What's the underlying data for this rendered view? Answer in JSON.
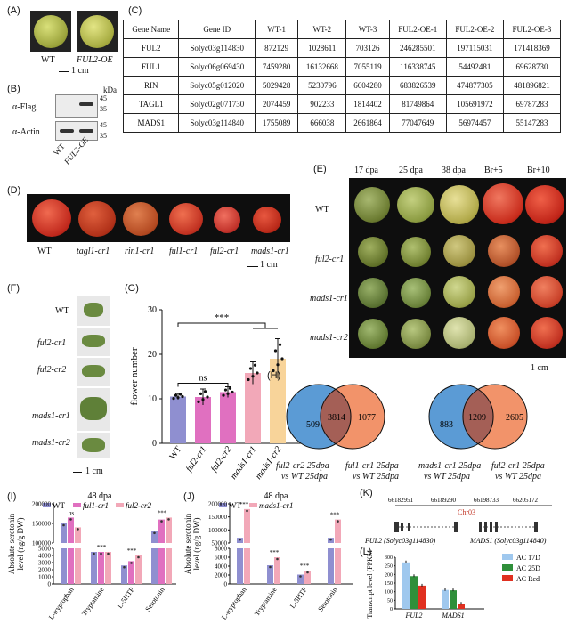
{
  "panels": {
    "A": {
      "label": "(A)",
      "fruits": [
        "WT",
        "FUL2-OE"
      ],
      "scale": "1 cm"
    },
    "B": {
      "label": "(B)",
      "unit": "kDa",
      "markers": [
        "45",
        "35",
        "45",
        "35"
      ],
      "rows": [
        "α-Flag",
        "α-Actin"
      ],
      "lanes": [
        "WT",
        "FUL2-OE"
      ]
    },
    "C": {
      "label": "(C)",
      "headers": [
        "Gene Name",
        "Gene ID",
        "WT-1",
        "WT-2",
        "WT-3",
        "FUL2-OE-1",
        "FUL2-OE-2",
        "FUL2-OE-3"
      ],
      "rows": [
        [
          "FUL2",
          "Solyc03g114830",
          "872129",
          "1028611",
          "703126",
          "246285501",
          "197115031",
          "171418369"
        ],
        [
          "FUL1",
          "Solyc06g069430",
          "7459280",
          "16132668",
          "7055119",
          "116338745",
          "54492481",
          "69628730"
        ],
        [
          "RIN",
          "Solyc05g012020",
          "5029428",
          "5230796",
          "6604280",
          "683826539",
          "474877305",
          "481896821"
        ],
        [
          "TAGL1",
          "Solyc02g071730",
          "2074459",
          "902233",
          "1814402",
          "81749864",
          "105691972",
          "69787283"
        ],
        [
          "MADS1",
          "Solyc03g114840",
          "1755089",
          "666038",
          "2661864",
          "77047649",
          "56974457",
          "55147283"
        ]
      ]
    },
    "D": {
      "label": "(D)",
      "genotypes": [
        "WT",
        "tagl1-cr1",
        "rin1-cr1",
        "ful1-cr1",
        "ful2-cr1",
        "mads1-cr1"
      ],
      "scale": "1 cm"
    },
    "E": {
      "label": "(E)",
      "stages": [
        "17 dpa",
        "25 dpa",
        "38 dpa",
        "Br+5",
        "Br+10"
      ],
      "rows": [
        "WT",
        "ful2-cr1",
        "mads1-cr1",
        "mads1-cr2"
      ],
      "scale": "1 cm"
    },
    "F": {
      "label": "(F)",
      "rows": [
        "WT",
        "ful2-cr1",
        "ful2-cr2",
        "mads1-cr1",
        "mads1-cr2"
      ],
      "scale": "1 cm"
    },
    "H": {
      "label": "(H)",
      "venn1": {
        "left": "509",
        "mid": "3814",
        "right": "1077",
        "cap_left": [
          "ful2-cr2 25dpa",
          "vs WT 25dpa"
        ],
        "cap_right": [
          "ful1-cr1 25dpa",
          "vs WT 25dpa"
        ]
      },
      "venn2": {
        "left": "883",
        "mid": "1209",
        "right": "2605",
        "cap_left": [
          "mads1-cr1 25dpa",
          "vs WT 25dpa"
        ],
        "cap_right": [
          "ful2-cr1 25dpa",
          "vs WT 25dpa"
        ]
      }
    },
    "K": {
      "label": "(K)",
      "coords": [
        "66182951",
        "66189290",
        "66198733",
        "66205172"
      ],
      "chr": "Chr03",
      "gene1": "FUL2 (Solyc03g114830)",
      "gene2": "MADS1 (Solyc03g114840)"
    }
  },
  "colors": {
    "wt": "#8f8fd0",
    "mut1": "#e070c0",
    "mut2": "#f2a8b8",
    "mut3": "#f8d49a",
    "venn_blue": "#5b9bd5",
    "venn_orange": "#f08050",
    "ac17": "#9fc8ee",
    "ac25": "#2f8f3a",
    "acred": "#e03020"
  },
  "chart_data": [
    {
      "panel": "(G)",
      "type": "bar",
      "categories": [
        "WT",
        "ful2-cr1",
        "ful2-cr2",
        "mads1-cr1",
        "mads1-cr2"
      ],
      "values": [
        10.5,
        10.4,
        11.5,
        15.8,
        19
      ],
      "errors": [
        0.7,
        1.8,
        1.2,
        2.5,
        4.5
      ],
      "ylabel": "flower number",
      "ylim": [
        0,
        30
      ],
      "yticks": [
        "0",
        "10",
        "20",
        "30"
      ],
      "annotations": [
        "ns",
        "***"
      ]
    },
    {
      "panel": "(I)",
      "type": "bar",
      "title": "48 dpa",
      "legend": [
        "WT",
        "ful1-cr1",
        "ful2-cr2"
      ],
      "categories": [
        "L-tryptophan",
        "Tryptamine",
        "L-5HTP",
        "Serotonin"
      ],
      "series": [
        {
          "name": "WT",
          "values": [
            150000,
            4500,
            2600,
            130000
          ]
        },
        {
          "name": "ful1-cr1",
          "values": [
            165000,
            4500,
            3200,
            160000
          ]
        },
        {
          "name": "ful2-cr2",
          "values": [
            140000,
            4500,
            4000,
            165000
          ]
        }
      ],
      "ylabel": "Absolute serotonin level (ng/g DW)",
      "yticks": [
        "0",
        "1000",
        "2000",
        "3000",
        "4000",
        "5000",
        "100000",
        "150000",
        "200000"
      ],
      "annotations": [
        "ns",
        "***",
        "***",
        "***"
      ]
    },
    {
      "panel": "(J)",
      "type": "bar",
      "title": "48 dpa",
      "legend": [
        "WT",
        "mads1-cr1"
      ],
      "categories": [
        "L-tryptophan",
        "Tryptamine",
        "L-5HTP",
        "Serotonin"
      ],
      "series": [
        {
          "name": "WT",
          "values": [
            70000,
            4200,
            2100,
            70000
          ]
        },
        {
          "name": "mads1-cr1",
          "values": [
            180000,
            6000,
            3000,
            140000
          ]
        }
      ],
      "ylabel": "Absolute serotonin level (ng/g DW)",
      "yticks": [
        "0",
        "2000",
        "4000",
        "6000",
        "8000",
        "50000",
        "100000",
        "150000",
        "200000"
      ],
      "annotations": [
        "***",
        "***",
        "***",
        "***"
      ]
    },
    {
      "panel": "(L)",
      "type": "bar",
      "categories": [
        "FUL2",
        "MADS1"
      ],
      "legend": [
        "AC 17D",
        "AC 25D",
        "AC Red"
      ],
      "series": [
        {
          "name": "AC 17D",
          "values": [
            270,
            110
          ]
        },
        {
          "name": "AC 25D",
          "values": [
            190,
            108
          ]
        },
        {
          "name": "AC Red",
          "values": [
            135,
            30
          ]
        }
      ],
      "ylabel": "Transcript level (FPKM)",
      "ylim": [
        0,
        300
      ],
      "yticks": [
        "0",
        "50",
        "100",
        "150",
        "200",
        "250",
        "300"
      ]
    }
  ]
}
